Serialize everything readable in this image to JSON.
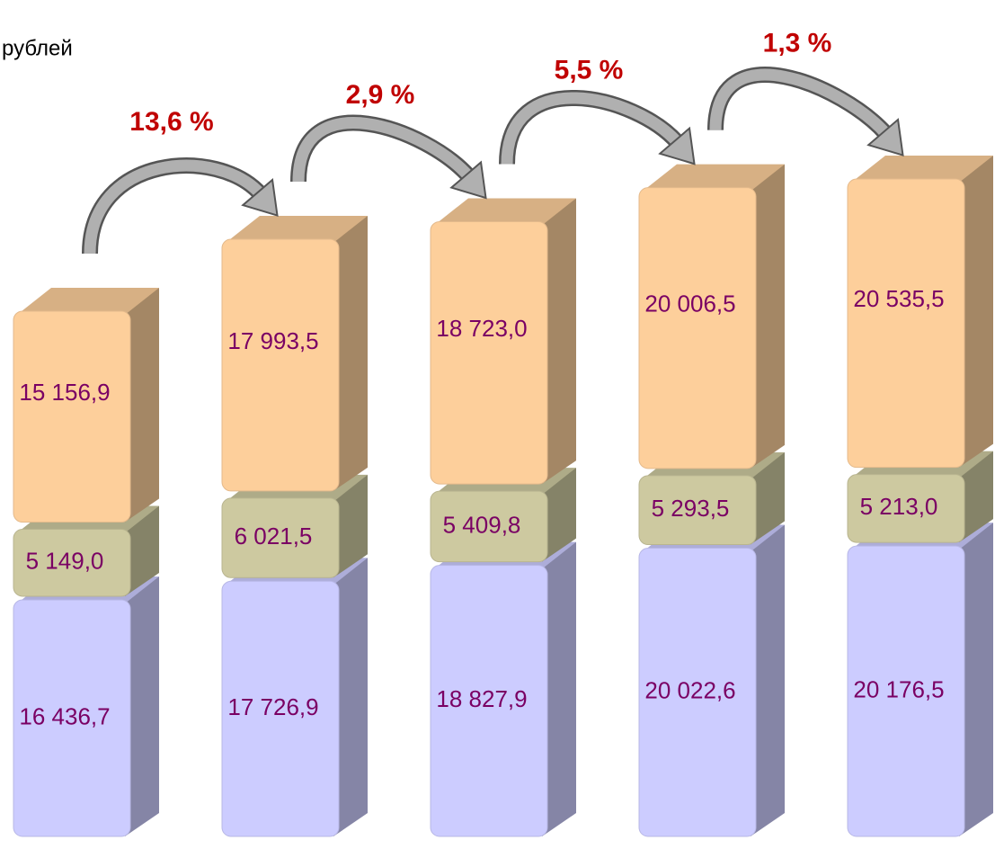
{
  "chart_data": {
    "type": "stacked_bar_3d",
    "unit_label": "рублей",
    "categories": [
      null,
      null,
      null,
      null,
      null
    ],
    "series": [
      {
        "color": "#ccccff",
        "values": [
          16436.7,
          17726.9,
          18827.9,
          20022.6,
          20176.5
        ],
        "value_labels": [
          "16 436,7",
          "17 726,9",
          "18 827,9",
          "20 022,6",
          "20 176,5"
        ]
      },
      {
        "color": "#cdc9a0",
        "values": [
          5149.0,
          6021.5,
          5409.8,
          5293.5,
          5213.0
        ],
        "value_labels": [
          "5 149,0",
          "6 021,5",
          "5 409,8",
          "5 293,5",
          "5 213,0"
        ]
      },
      {
        "color": "#fdcf9b",
        "values": [
          15156.9,
          17993.5,
          18723.0,
          20006.5,
          20535.5
        ],
        "value_labels": [
          "15 156,9",
          "17 993,5",
          "18 723,0",
          "20 006,5",
          "20 535,5"
        ]
      }
    ],
    "annotations": [
      "13,6 %",
      "2,9 %",
      "5,5 %",
      "1,3 %"
    ],
    "label_color": "#7a0064",
    "annotation_color": "#c00000"
  }
}
